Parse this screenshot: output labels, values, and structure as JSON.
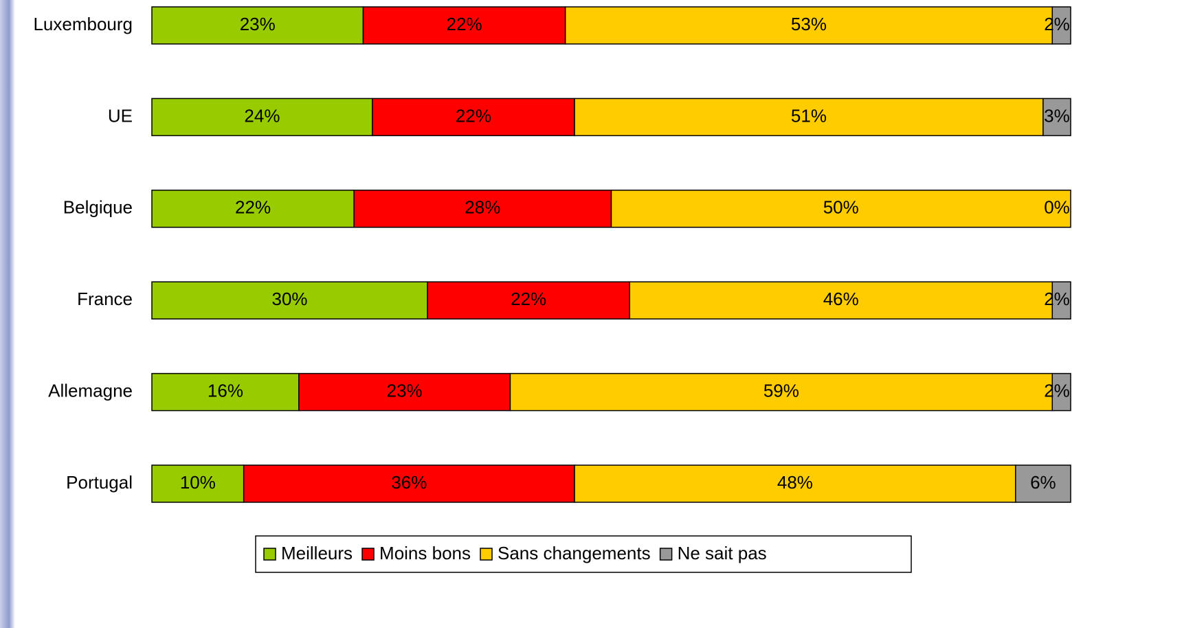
{
  "chart_data": {
    "type": "stacked-barh",
    "categories": [
      "Luxembourg",
      "UE",
      "Belgique",
      "France",
      "Allemagne",
      "Portugal"
    ],
    "series": [
      {
        "name": "Meilleurs",
        "color": "#99cc00",
        "values": [
          23,
          24,
          22,
          30,
          16,
          10
        ],
        "value_labels": [
          "23%",
          "24%",
          "22%",
          "30%",
          "16%",
          "10%"
        ]
      },
      {
        "name": "Moins bons",
        "color": "#ff0000",
        "values": [
          22,
          22,
          28,
          22,
          23,
          36
        ],
        "value_labels": [
          "22%",
          "22%",
          "28%",
          "22%",
          "23%",
          "36%"
        ]
      },
      {
        "name": "Sans changements",
        "color": "#ffcc00",
        "values": [
          53,
          51,
          50,
          46,
          59,
          48
        ],
        "value_labels": [
          "53%",
          "51%",
          "50%",
          "46%",
          "59%",
          "48%"
        ]
      },
      {
        "name": "Ne sait pas",
        "color": "#999999",
        "values": [
          2,
          3,
          0,
          2,
          2,
          6
        ],
        "value_labels": [
          "2%",
          "3%",
          "0%",
          "2%",
          "2%",
          "6%"
        ]
      }
    ],
    "xlim": [
      0,
      100
    ],
    "legend": "bottom"
  }
}
